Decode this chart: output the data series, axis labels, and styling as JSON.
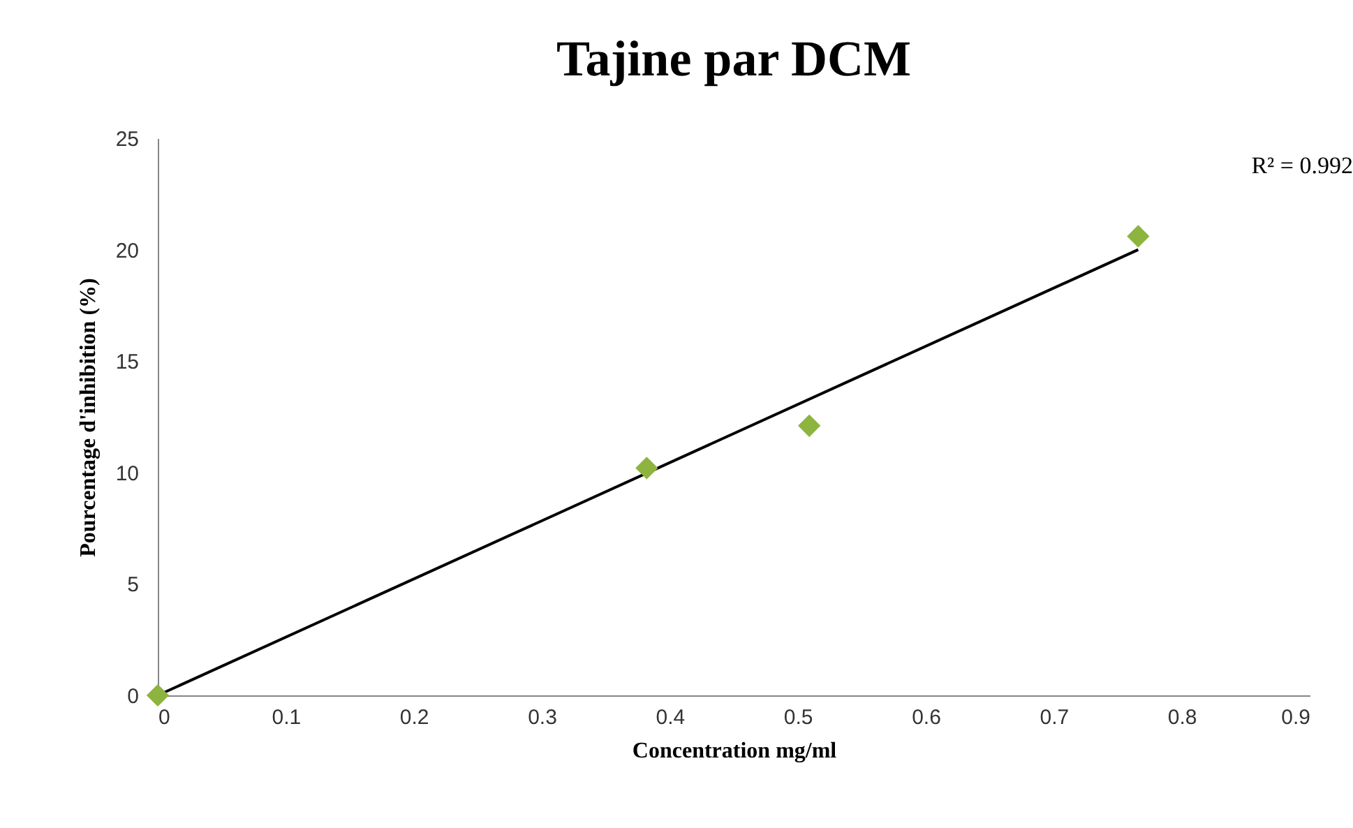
{
  "chart_data": {
    "type": "scatter",
    "title": "Tajine par DCM",
    "xlabel": "Concentration mg/ml",
    "ylabel": "Pourcentage d'inhibition  (%)",
    "x": [
      0,
      0.382,
      0.509,
      0.766
    ],
    "series": [
      {
        "color": "#8db43e",
        "values": [
          0,
          10.2,
          12.1,
          20.6
        ]
      },
      {
        "type": "line",
        "marker": "none",
        "color": "#000000",
        "x": [
          0,
          0.766
        ],
        "values": [
          0,
          20.0
        ]
      }
    ],
    "xlim": [
      0,
      0.9
    ],
    "xticks": [
      0,
      0.1,
      0.2,
      0.3,
      0.4,
      0.5,
      0.6,
      0.7,
      0.8,
      0.9
    ],
    "ylim": [
      0,
      25
    ],
    "yticks": [
      0,
      5,
      10,
      15,
      20,
      25
    ],
    "marker": "diamond",
    "grid": false,
    "annotations": [
      "R² = 0.992"
    ]
  }
}
